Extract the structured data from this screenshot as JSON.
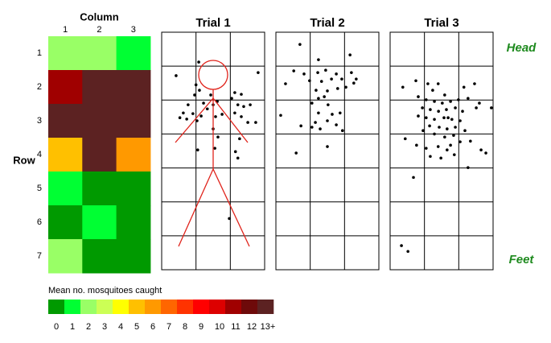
{
  "chart_data": [
    {
      "type": "heatmap",
      "x_label": "Column",
      "y_label": "Row",
      "columns": [
        "1",
        "2",
        "3"
      ],
      "rows": [
        "1",
        "2",
        "3",
        "4",
        "5",
        "6",
        "7"
      ],
      "values": [
        [
          2,
          2,
          1
        ],
        [
          11,
          13,
          13
        ],
        [
          13,
          13,
          13
        ],
        [
          5,
          13,
          6
        ],
        [
          1,
          0,
          0
        ],
        [
          0,
          1,
          0
        ],
        [
          2,
          0,
          0
        ]
      ],
      "colorbar": {
        "title": "Mean no. mosquitoes caught",
        "colors": [
          "#009a00",
          "#00ff33",
          "#99ff66",
          "#ccff55",
          "#ffff00",
          "#ffc000",
          "#ff9900",
          "#ff6600",
          "#ff3300",
          "#ff0000",
          "#dd0000",
          "#a00000",
          "#6e0a0a",
          "#5c2222"
        ],
        "ticks": [
          0,
          1,
          2,
          3,
          4,
          5,
          6,
          7,
          8,
          9,
          10,
          11,
          12,
          {
            "value": 13,
            "label": "13+"
          }
        ]
      }
    },
    {
      "type": "scatter",
      "title": "Trial 1",
      "xlim": [
        0,
        3
      ],
      "ylim": [
        7,
        0
      ],
      "color": "#000000",
      "x": [
        1.08,
        0.42,
        2.81,
        1.0,
        1.1,
        0.96,
        1.43,
        2.13,
        2.32,
        2.04,
        0.77,
        0.63,
        0.91,
        1.22,
        1.5,
        1.62,
        1.33,
        0.73,
        1.03,
        1.15,
        1.57,
        1.76,
        2.22,
        2.39,
        2.58,
        2.13,
        2.32,
        2.51,
        2.74,
        1.5,
        0.53,
        1.64,
        2.27,
        1.05,
        2.15,
        2.22,
        1.55,
        1.97
      ],
      "y": [
        0.88,
        1.28,
        1.19,
        1.55,
        1.71,
        1.85,
        1.85,
        1.78,
        1.83,
        1.95,
        2.14,
        2.38,
        2.4,
        2.09,
        2.14,
        2.04,
        2.26,
        2.56,
        2.61,
        2.47,
        2.49,
        2.42,
        2.14,
        2.19,
        2.14,
        2.38,
        2.49,
        2.66,
        2.66,
        2.85,
        2.52,
        3.09,
        3.14,
        3.47,
        3.52,
        3.71,
        3.42,
        5.49
      ]
    },
    {
      "type": "scatter",
      "title": "Trial 2",
      "xlim": [
        0,
        3
      ],
      "ylim": [
        7,
        0
      ],
      "color": "#000000",
      "x": [
        0.7,
        1.24,
        2.16,
        0.52,
        0.82,
        1.22,
        1.45,
        1.76,
        2.2,
        0.28,
        0.98,
        1.33,
        1.62,
        1.92,
        2.27,
        1.17,
        1.5,
        1.8,
        2.04,
        1.24,
        1.41,
        1.05,
        1.52,
        0.14,
        1.24,
        1.64,
        1.87,
        1.5,
        1.76,
        0.73,
        1.05,
        1.29,
        1.94,
        1.5,
        0.59,
        2.34,
        1.15
      ],
      "y": [
        0.36,
        0.81,
        0.67,
        1.14,
        1.23,
        1.19,
        1.12,
        1.23,
        1.19,
        1.52,
        1.43,
        1.45,
        1.38,
        1.38,
        1.5,
        1.71,
        1.73,
        1.66,
        1.62,
        1.95,
        1.9,
        2.09,
        2.14,
        2.45,
        2.38,
        2.42,
        2.38,
        2.61,
        2.73,
        2.76,
        2.8,
        2.85,
        2.9,
        3.37,
        3.56,
        1.38,
        2.66
      ]
    },
    {
      "type": "scatter",
      "title": "Trial 3",
      "xlim": [
        0,
        3
      ],
      "ylim": [
        7,
        0
      ],
      "color": "#000000",
      "annotations": [
        "Head",
        "Feet"
      ],
      "x": [
        0.75,
        0.37,
        1.1,
        1.4,
        1.24,
        1.59,
        2.15,
        2.46,
        0.82,
        1.05,
        1.29,
        1.52,
        1.76,
        1.99,
        2.27,
        2.6,
        2.95,
        0.94,
        1.17,
        1.41,
        1.64,
        1.9,
        2.11,
        0.82,
        1.05,
        1.29,
        1.57,
        1.8,
        2.04,
        1.15,
        1.43,
        1.66,
        1.9,
        0.96,
        1.29,
        1.59,
        1.85,
        2.18,
        0.44,
        0.77,
        1.05,
        1.4,
        1.66,
        1.76,
        2.04,
        2.34,
        2.65,
        2.79,
        1.17,
        1.48,
        1.87,
        2.27,
        0.68,
        0.33,
        0.52,
        2.51,
        1.69
      ],
      "y": [
        1.43,
        1.62,
        1.52,
        1.52,
        1.71,
        1.85,
        1.62,
        1.52,
        1.9,
        1.99,
        2.04,
        2.09,
        2.04,
        1.99,
        1.95,
        2.09,
        2.23,
        2.23,
        2.28,
        2.33,
        2.28,
        2.23,
        2.33,
        2.47,
        2.52,
        2.57,
        2.52,
        2.57,
        2.61,
        2.76,
        2.8,
        2.85,
        2.8,
        2.9,
        3.0,
        3.09,
        3.04,
        2.9,
        3.14,
        3.33,
        3.42,
        3.37,
        3.47,
        3.33,
        3.23,
        3.21,
        3.47,
        3.56,
        3.66,
        3.71,
        3.61,
        3.99,
        4.28,
        6.29,
        6.46,
        2.23,
        2.52
      ]
    }
  ]
}
